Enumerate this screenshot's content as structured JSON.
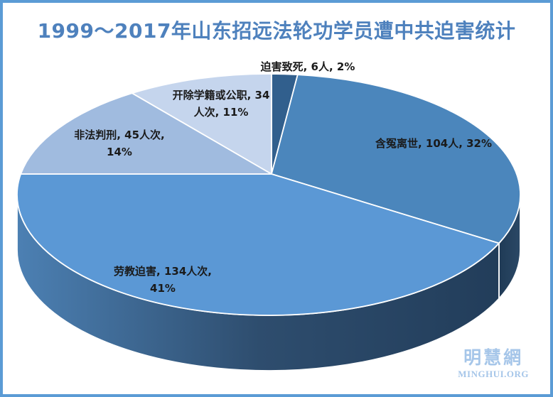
{
  "chart_data": {
    "type": "pie",
    "style": "3d-pie",
    "title": "1999～2017年山东招远法轮功学员遭中共迫害统计",
    "legend": "none",
    "order": "clockwise-from-top",
    "slices": [
      {
        "name": "迫害致死",
        "count": 6,
        "count_unit": "人",
        "percent": 2,
        "label": "迫害致死, 6人, 2%",
        "color": "#315f8d"
      },
      {
        "name": "含冤离世",
        "count": 104,
        "count_unit": "人",
        "percent": 32,
        "label": "含冤离世, 104人, 32%",
        "color": "#4b86bc"
      },
      {
        "name": "劳教迫害",
        "count": 134,
        "count_unit": "人次",
        "percent": 41,
        "label": "劳教迫害, 134人次,\n41%",
        "color": "#5b98d5"
      },
      {
        "name": "非法判刑",
        "count": 45,
        "count_unit": "人次",
        "percent": 14,
        "label": "非法判刑, 45人次,\n14%",
        "color": "#a0bbdf"
      },
      {
        "name": "开除学籍或公职",
        "count": 34,
        "count_unit": "人次",
        "percent": 11,
        "label": "开除学籍或公职, 34\n人次, 11%",
        "color": "#c5d5ed"
      }
    ]
  },
  "colors": {
    "title": "#4e81bd",
    "frame_border": "#5b9bd5",
    "label_text": "#1a1a1a",
    "slice_divider": "#ffffff",
    "wall_41_gradient": [
      "#4c80b3",
      "#2e4d6e",
      "#223d5a"
    ],
    "wall_32_gradient": [
      "#1f3a55",
      "#2c4a68"
    ],
    "watermark": "#a6c6e9"
  },
  "watermark": {
    "chinese": "明慧網",
    "latin": "MINGHUI.ORG"
  }
}
